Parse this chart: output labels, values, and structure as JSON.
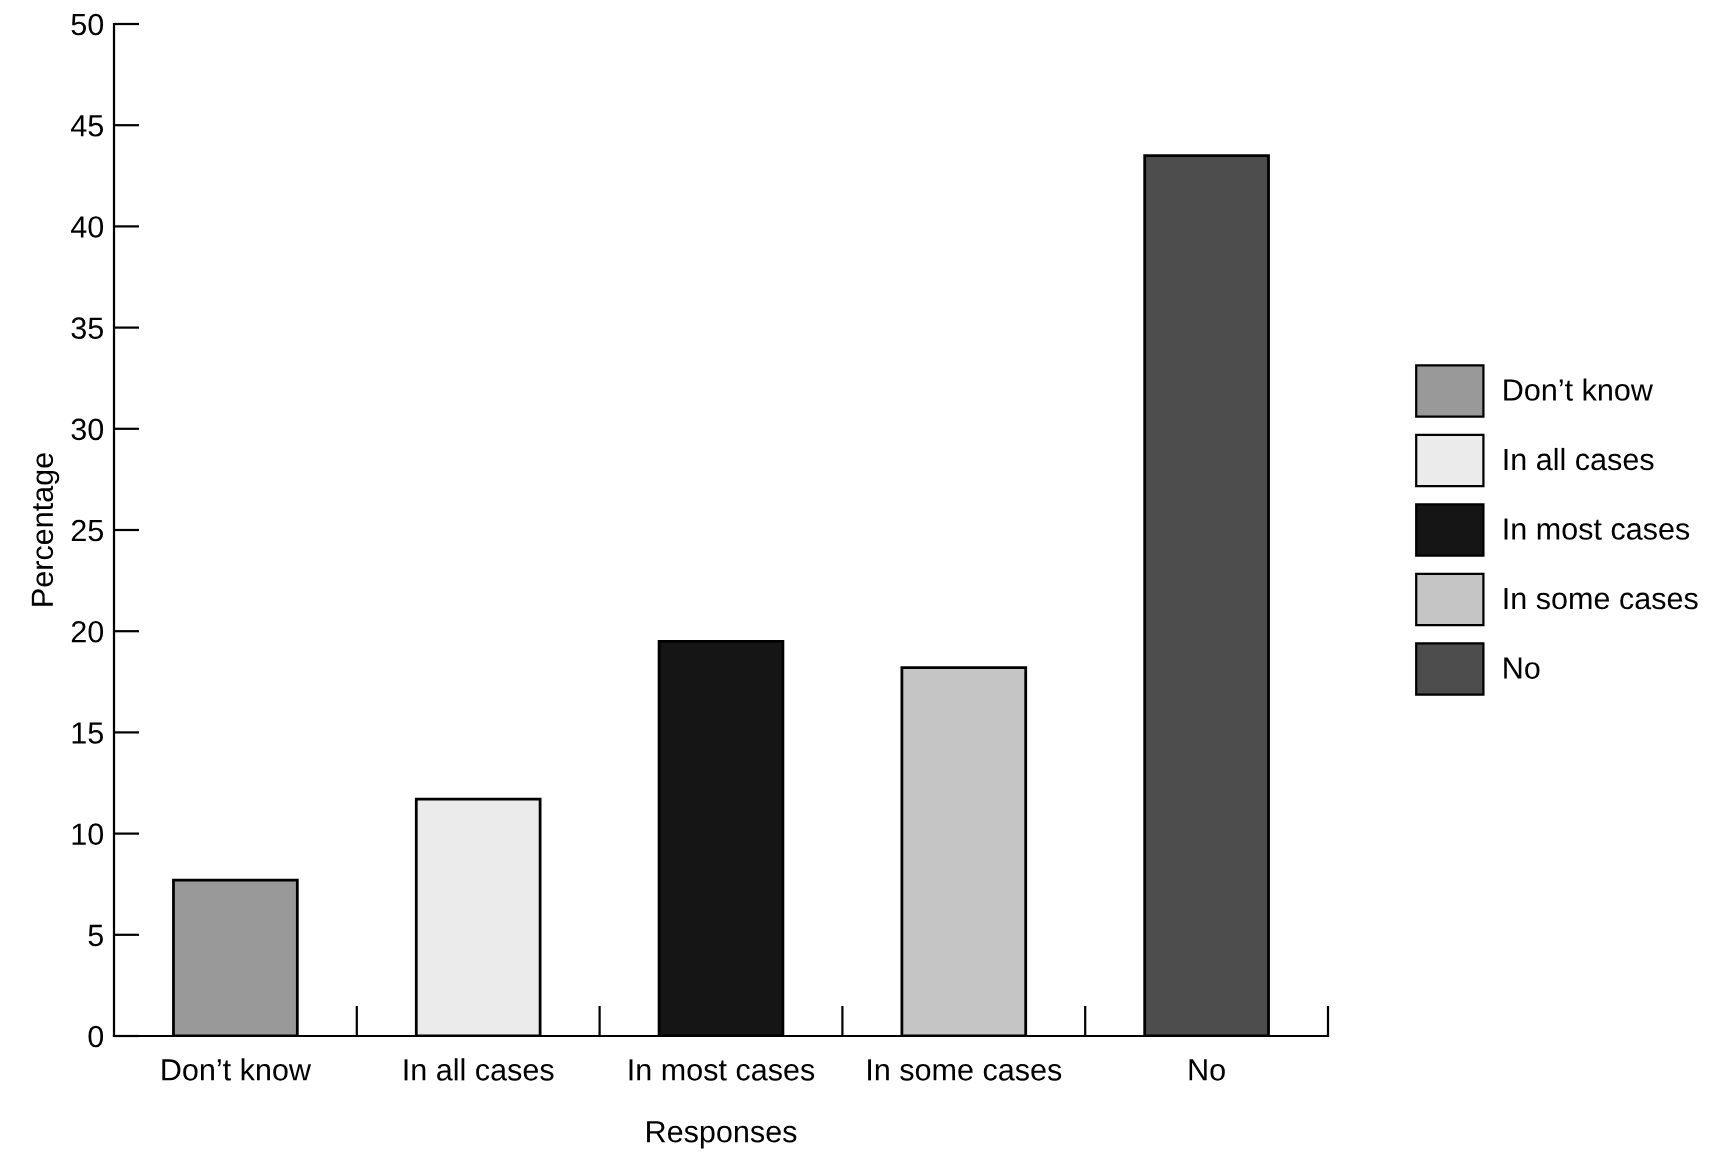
{
  "chart_data": {
    "type": "bar",
    "xlabel": "Responses",
    "ylabel": "Percentage",
    "categories": [
      "Don’t know",
      "In all cases",
      "In most cases",
      "In some cases",
      "No"
    ],
    "series": [
      {
        "name": "Don’t know",
        "color": "#999999",
        "values": [
          7.7,
          null,
          null,
          null,
          null
        ]
      },
      {
        "name": "In all cases",
        "color": "#ebebeb",
        "values": [
          null,
          11.7,
          null,
          null,
          null
        ]
      },
      {
        "name": "In most cases",
        "color": "#151515",
        "values": [
          null,
          null,
          19.5,
          null,
          null
        ]
      },
      {
        "name": "In some cases",
        "color": "#c4c5c4",
        "values": [
          null,
          null,
          null,
          18.2,
          null
        ]
      },
      {
        "name": "No",
        "color": "#4d4d4d",
        "values": [
          null,
          null,
          null,
          null,
          43.5
        ]
      }
    ],
    "ylim": [
      0,
      50
    ],
    "yticks": [
      0,
      5,
      10,
      15,
      20,
      25,
      30,
      35,
      40,
      45,
      50
    ],
    "grid": false,
    "legend": "right"
  }
}
